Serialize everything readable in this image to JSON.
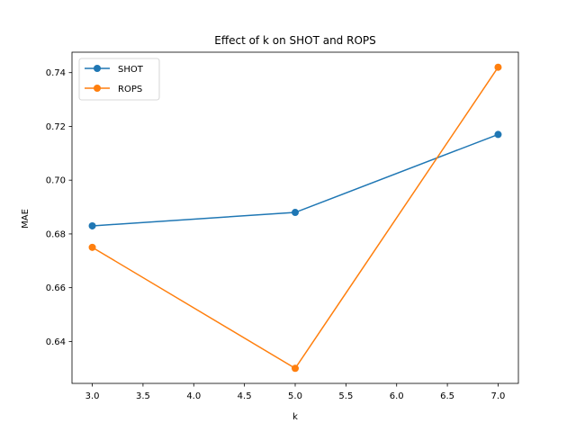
{
  "chart_data": {
    "type": "line",
    "title": "Effect of k on SHOT and ROPS",
    "xlabel": "k",
    "ylabel": "MAE",
    "x": [
      3.0,
      5.0,
      7.0
    ],
    "series": [
      {
        "name": "SHOT",
        "color": "#1f77b4",
        "values": [
          0.683,
          0.688,
          0.717
        ]
      },
      {
        "name": "ROPS",
        "color": "#ff7f0e",
        "values": [
          0.675,
          0.63,
          0.742
        ]
      }
    ],
    "xlim": [
      2.8,
      7.2
    ],
    "ylim": [
      0.6244,
      0.7476
    ],
    "xticks": [
      3.0,
      3.5,
      4.0,
      4.5,
      5.0,
      5.5,
      6.0,
      6.5,
      7.0
    ],
    "xtick_labels": [
      "3.0",
      "3.5",
      "4.0",
      "4.5",
      "5.0",
      "5.5",
      "6.0",
      "6.5",
      "7.0"
    ],
    "yticks": [
      0.64,
      0.66,
      0.68,
      0.7,
      0.72,
      0.74
    ],
    "ytick_labels": [
      "0.64",
      "0.66",
      "0.68",
      "0.70",
      "0.72",
      "0.74"
    ],
    "grid": false,
    "legend_position": "top-left"
  }
}
